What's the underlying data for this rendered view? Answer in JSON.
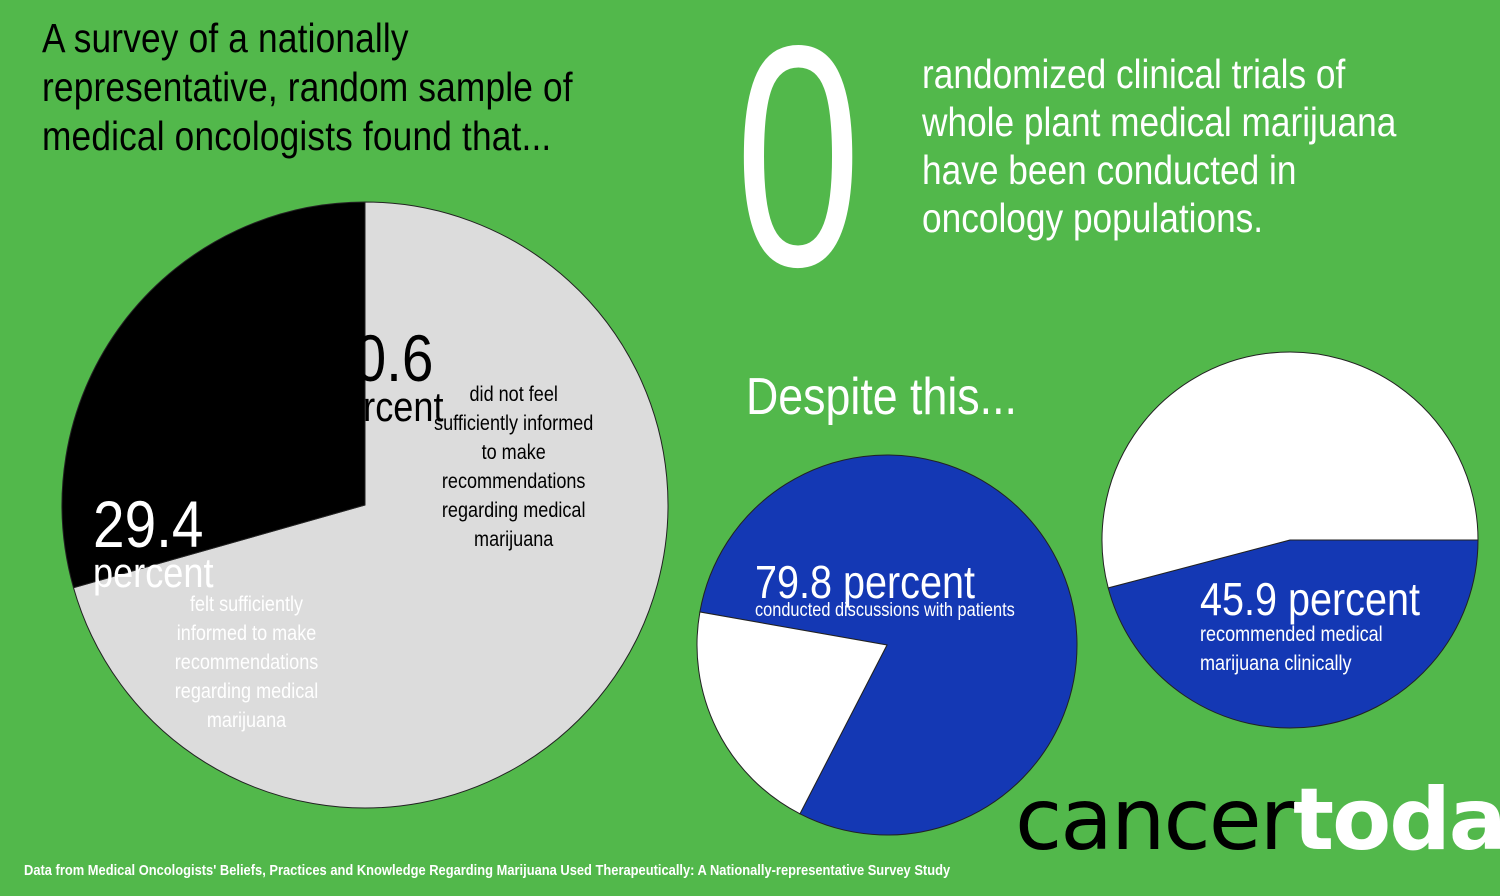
{
  "intro": "A survey of a nationally representative, random sample of medical oncologists found that...",
  "zero": {
    "number": "0",
    "text": "randomized clinical trials of whole plant medical marijuana have been conducted in oncology populations."
  },
  "despite": "Despite this...",
  "chart_data": [
    {
      "type": "pie",
      "slices": [
        {
          "value": 70.6,
          "color": "#dcdcdc"
        },
        {
          "value": 29.4,
          "color": "#000000"
        }
      ],
      "labels": {
        "num_706": "70.6",
        "word_706": "percent",
        "desc_706": "did not feel sufficiently informed to make recommendations regarding medical marijuana",
        "num_294": "29.4",
        "word_294": "percent",
        "desc_294": "felt sufficiently informed to make recommendations regarding medical marijuana"
      }
    },
    {
      "type": "pie",
      "slices": [
        {
          "value": 79.8,
          "color": "#1438b4"
        },
        {
          "value": 20.2,
          "color": "#ffffff"
        }
      ],
      "labels": {
        "main": "79.8 percent",
        "desc": "conducted discussions with patients"
      }
    },
    {
      "type": "pie",
      "slices": [
        {
          "value": 45.9,
          "color": "#1438b4"
        },
        {
          "value": 54.1,
          "color": "#ffffff"
        }
      ],
      "labels": {
        "main": "45.9 percent",
        "desc": "recommended medical marijuana clinically"
      }
    }
  ],
  "logo": {
    "part1": "cancer",
    "part2": "today"
  },
  "source": "Data from Medical Oncologists' Beliefs, Practices and Knowledge Regarding Marijuana Used Therapeutically: A Nationally-representative Survey Study"
}
